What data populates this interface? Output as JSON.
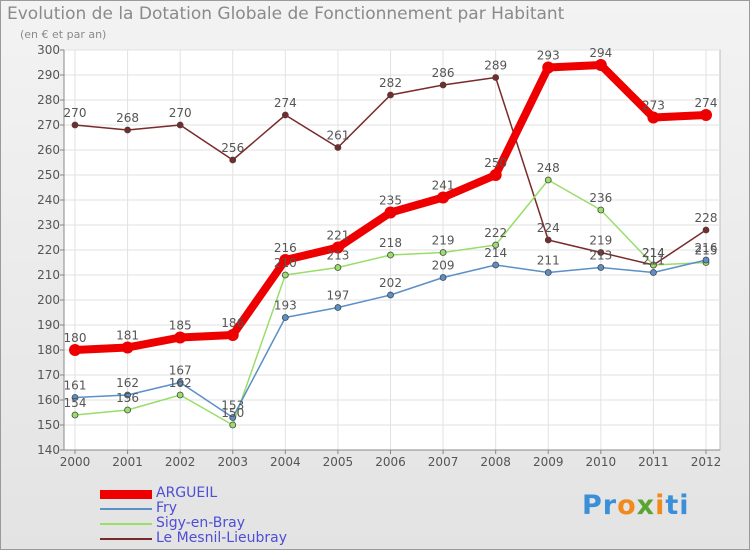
{
  "title": "Evolution de la Dotation Globale de Fonctionnement par Habitant",
  "subtitle": "(en € et par an)",
  "logo": "Proxiti",
  "chart_data": {
    "type": "line",
    "x": [
      "2000",
      "2001",
      "2002",
      "2003",
      "2004",
      "2005",
      "2006",
      "2007",
      "2008",
      "2009",
      "2010",
      "2011",
      "2012"
    ],
    "ylim": [
      140,
      300
    ],
    "yticks": [
      140,
      150,
      160,
      170,
      180,
      190,
      200,
      210,
      220,
      230,
      240,
      250,
      260,
      270,
      280,
      290,
      300
    ],
    "grid": true,
    "legend_position": "bottom-left",
    "series": [
      {
        "name": "ARGUEIL",
        "color": "#ee0000",
        "values": [
          180,
          181,
          185,
          186,
          216,
          221,
          235,
          241,
          250,
          293,
          294,
          273,
          274
        ]
      },
      {
        "name": "Fry",
        "color": "#5b8fc7",
        "values": [
          161,
          162,
          167,
          153,
          193,
          197,
          202,
          209,
          214,
          211,
          213,
          211,
          216
        ]
      },
      {
        "name": "Sigy-en-Bray",
        "color": "#99dd6a",
        "values": [
          154,
          156,
          162,
          150,
          210,
          213,
          218,
          219,
          222,
          248,
          236,
          214,
          215
        ]
      },
      {
        "name": "Le Mesnil-Lieubray",
        "color": "#7a2a2a",
        "values": [
          270,
          268,
          270,
          256,
          274,
          261,
          282,
          286,
          289,
          224,
          219,
          214,
          228
        ]
      }
    ]
  }
}
